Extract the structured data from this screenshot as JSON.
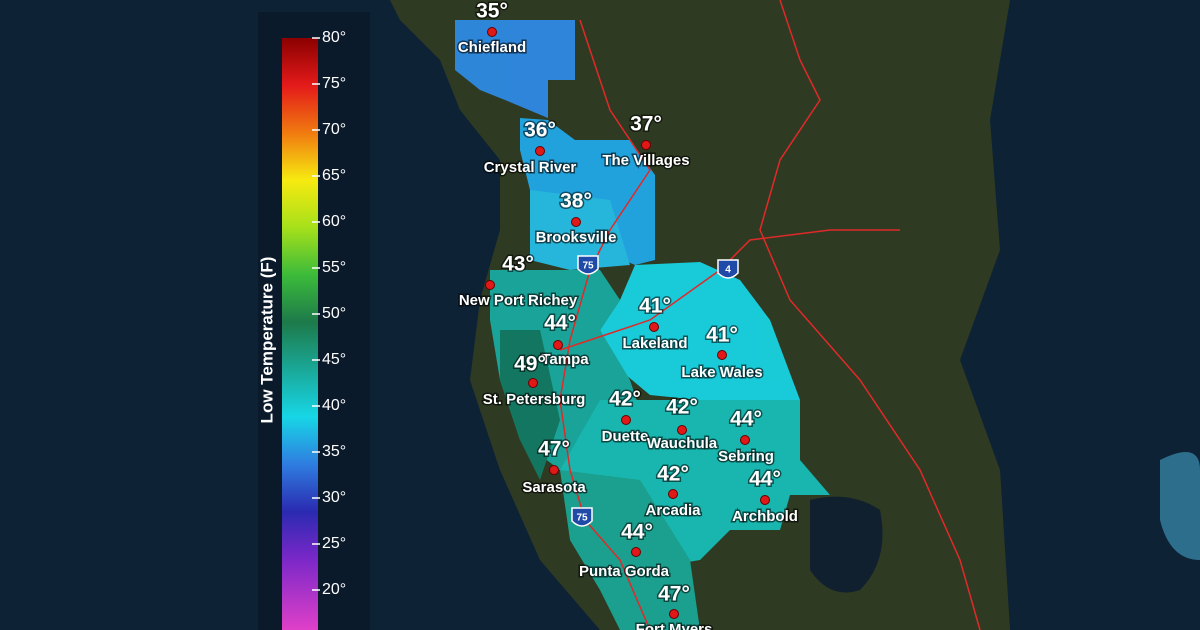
{
  "legend": {
    "title": "Low Temperature (F)",
    "ticks": [
      "80°",
      "75°",
      "70°",
      "65°",
      "60°",
      "55°",
      "50°",
      "45°",
      "40°",
      "35°",
      "30°",
      "25°",
      "20°"
    ]
  },
  "cities": [
    {
      "name": "Chiefland",
      "temp": "35°"
    },
    {
      "name": "Crystal River",
      "temp": "36°"
    },
    {
      "name": "The Villages",
      "temp": "37°"
    },
    {
      "name": "Brooksville",
      "temp": "38°"
    },
    {
      "name": "New Port Richey",
      "temp": "43°"
    },
    {
      "name": "Tampa",
      "temp": "44°"
    },
    {
      "name": "St. Petersburg",
      "temp": "49°"
    },
    {
      "name": "Lakeland",
      "temp": "41°"
    },
    {
      "name": "Lake Wales",
      "temp": "41°"
    },
    {
      "name": "Duette",
      "temp": "42°"
    },
    {
      "name": "Wauchula",
      "temp": "42°"
    },
    {
      "name": "Sebring",
      "temp": "44°"
    },
    {
      "name": "Sarasota",
      "temp": "47°"
    },
    {
      "name": "Arcadia",
      "temp": "42°"
    },
    {
      "name": "Archbold",
      "temp": "44°"
    },
    {
      "name": "Punta Gorda",
      "temp": "44°"
    },
    {
      "name": "Fort Myers",
      "temp": "47°"
    }
  ],
  "shields": [
    "75",
    "4",
    "75"
  ]
}
